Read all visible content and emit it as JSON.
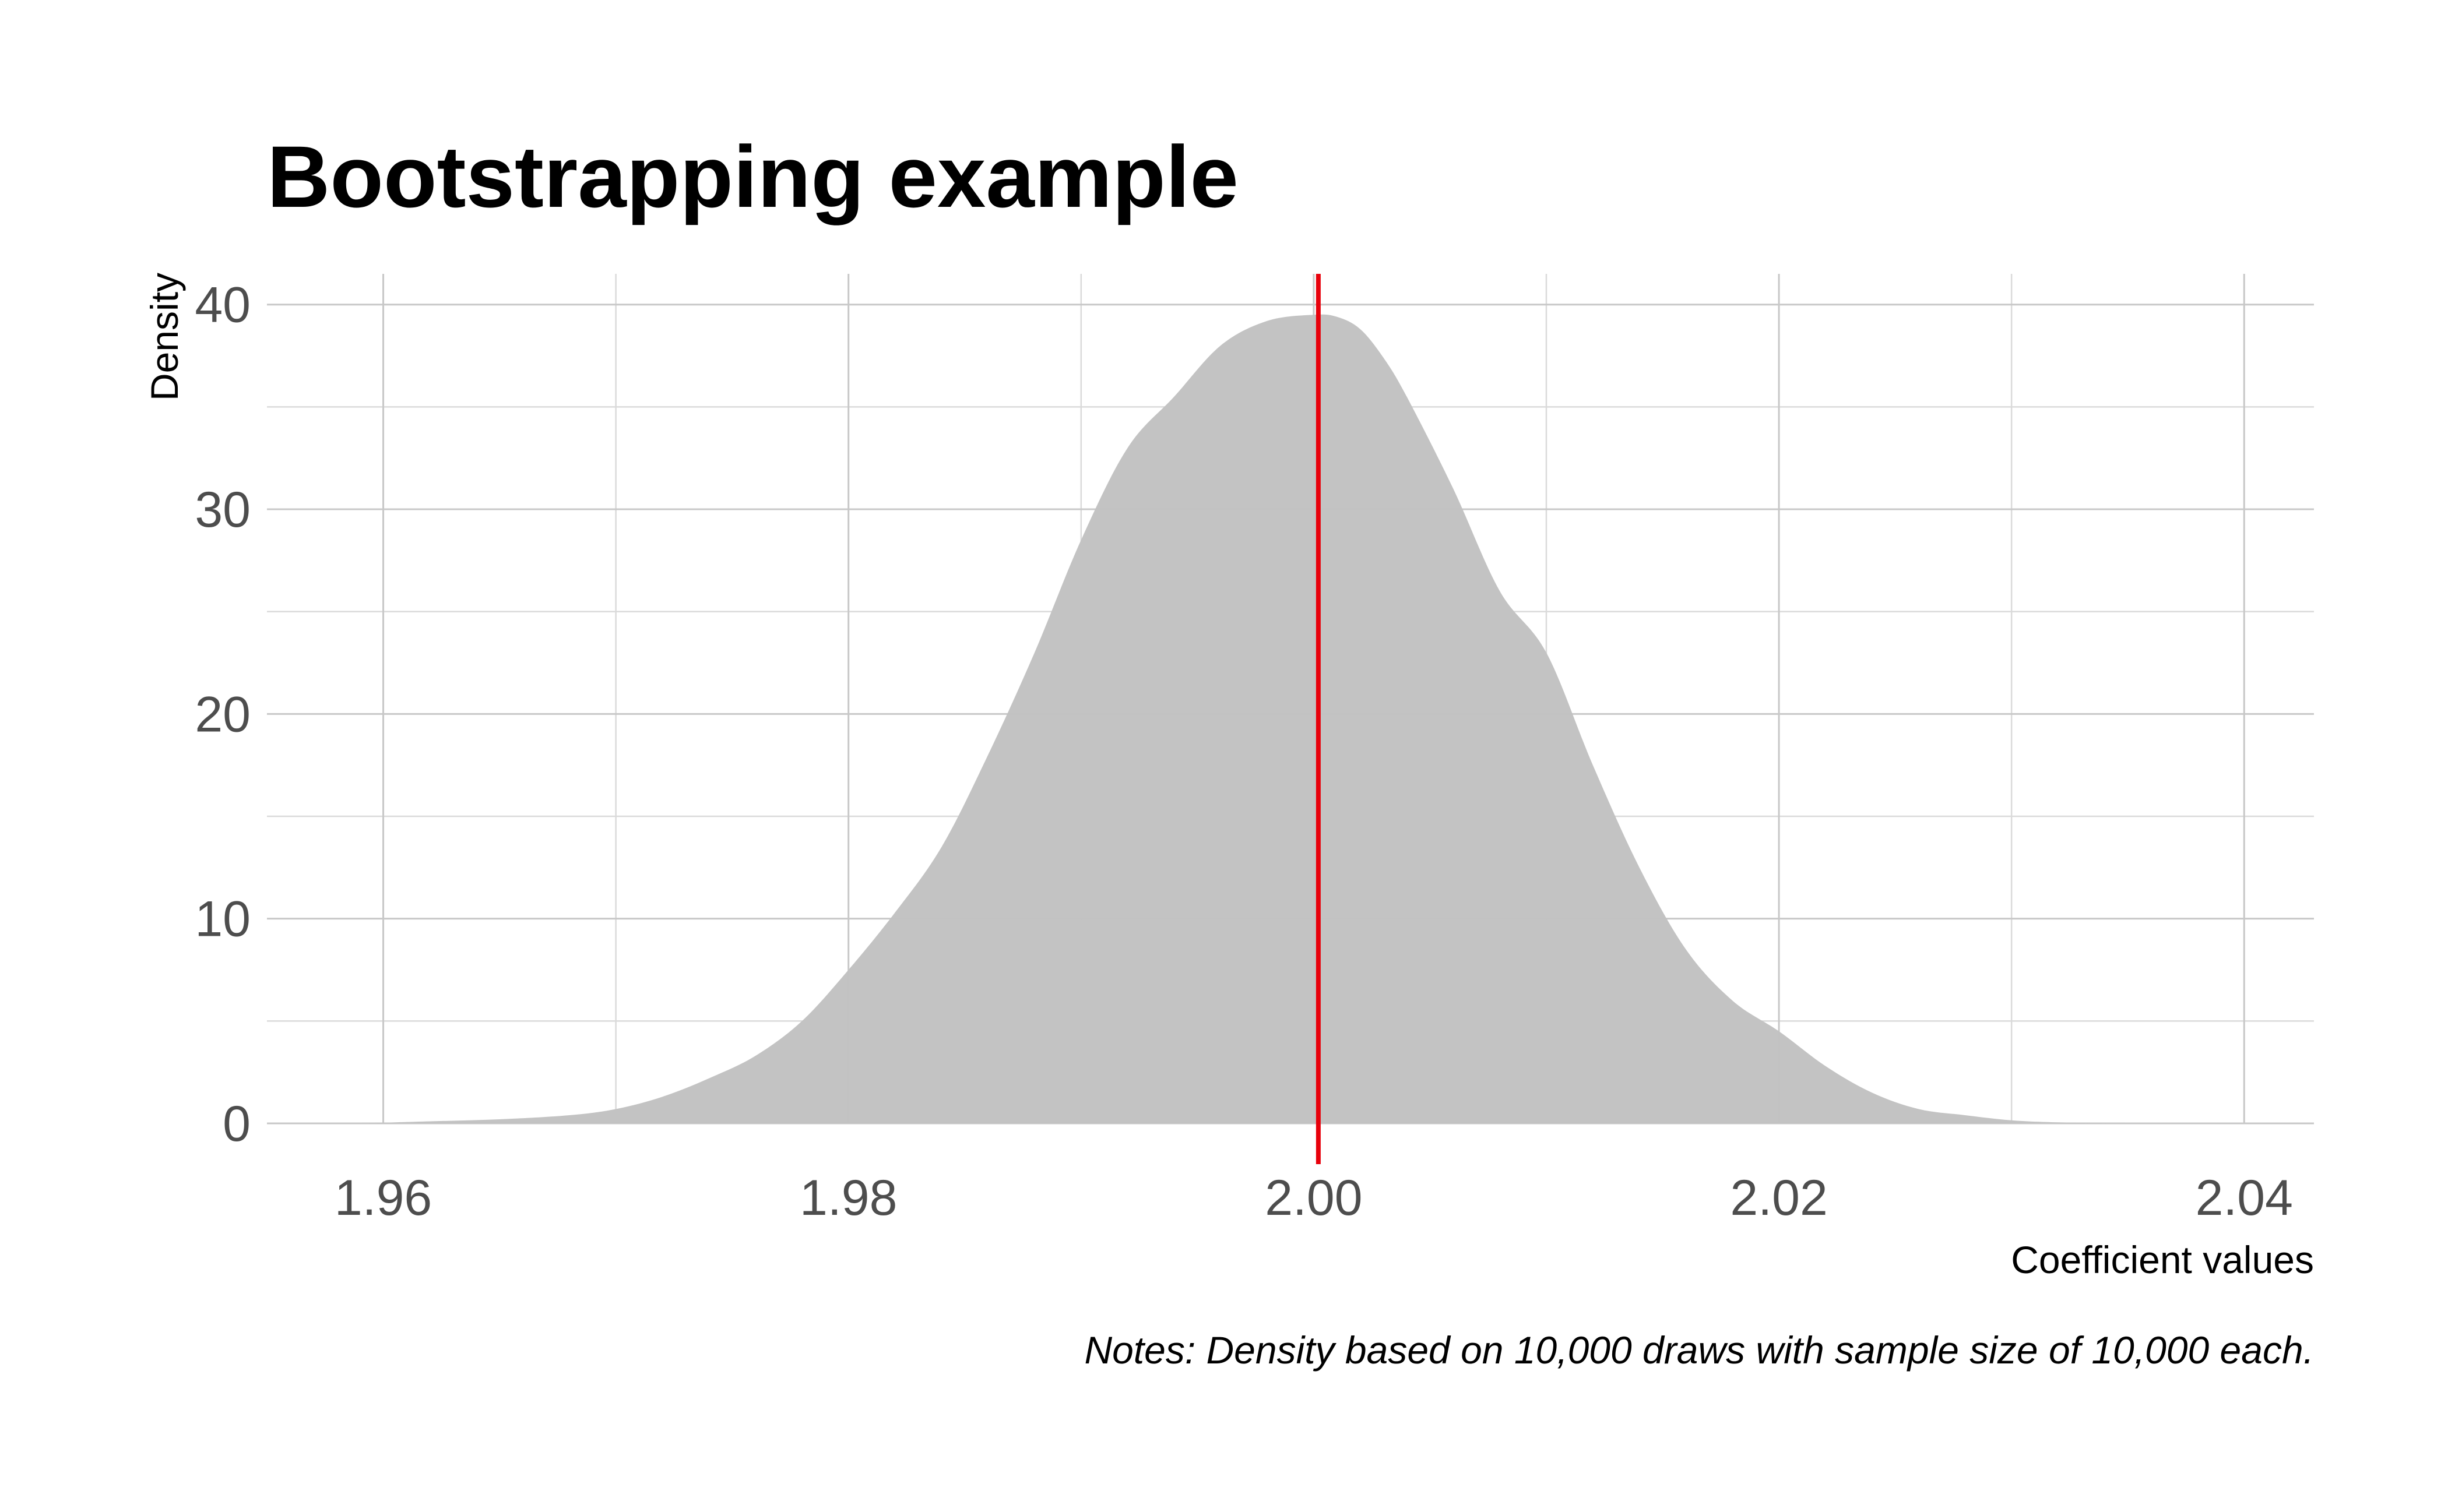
{
  "chart_data": {
    "type": "area",
    "title": "Bootstrapping example",
    "xlabel": "Coefficient values",
    "ylabel": "Density",
    "caption": "Notes: Density based on 10,000 draws with sample size of 10,000 each.",
    "xlim": [
      1.955,
      2.043
    ],
    "ylim": [
      0,
      41.5
    ],
    "x_ticks": [
      1.96,
      1.98,
      2.0,
      2.02,
      2.04
    ],
    "x_tick_labels": [
      "1.96",
      "1.98",
      "2.00",
      "2.02",
      "2.04"
    ],
    "x_minor_ticks": [
      1.97,
      1.99,
      2.01,
      2.03
    ],
    "y_ticks": [
      0,
      10,
      20,
      30,
      40
    ],
    "y_tick_labels": [
      "0",
      "10",
      "20",
      "30",
      "40"
    ],
    "y_minor_ticks": [
      5,
      15,
      25,
      35
    ],
    "grid": true,
    "reference_line": {
      "x": 2.0002,
      "color": "#e8000b"
    },
    "fill_color": "#c2c2c2",
    "series": [
      {
        "x": [
          1.959,
          1.962,
          1.965,
          1.968,
          1.97,
          1.972,
          1.974,
          1.976,
          1.978,
          1.98,
          1.982,
          1.984,
          1.986,
          1.988,
          1.99,
          1.992,
          1.994,
          1.996,
          1.998,
          2.0,
          2.001,
          2.002,
          2.003,
          2.004,
          2.006,
          2.008,
          2.01,
          2.012,
          2.014,
          2.016,
          2.018,
          2.02,
          2.022,
          2.024,
          2.026,
          2.028,
          2.03,
          2.032,
          2.035,
          2.038,
          2.04
        ],
        "y": [
          0,
          0.1,
          0.2,
          0.4,
          0.7,
          1.3,
          2.2,
          3.3,
          5.0,
          7.5,
          10.3,
          13.5,
          18.0,
          23.0,
          28.5,
          33.0,
          35.5,
          38.0,
          39.2,
          39.5,
          39.4,
          38.8,
          37.4,
          35.5,
          31.0,
          26.0,
          23.0,
          17.5,
          12.5,
          8.5,
          6.0,
          4.5,
          2.8,
          1.5,
          0.7,
          0.4,
          0.15,
          0.05,
          0.0,
          0.0,
          0.0
        ]
      }
    ]
  }
}
